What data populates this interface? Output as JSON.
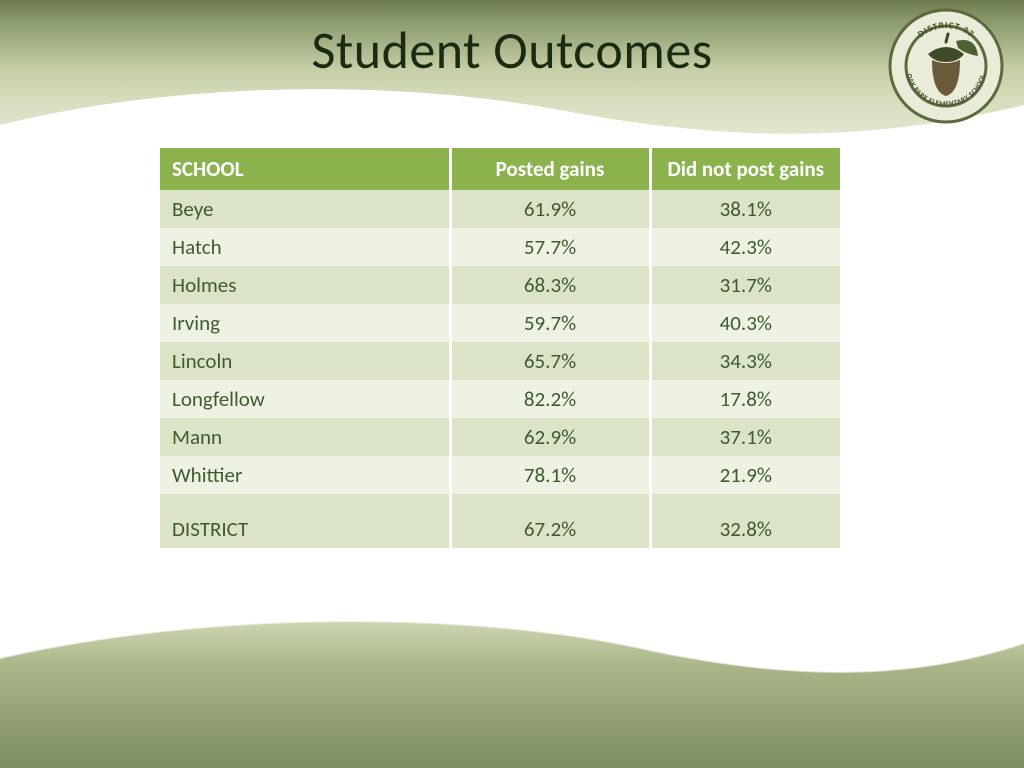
{
  "title": "Student Outcomes",
  "logo": {
    "outer_text_top": "DISTRICT 97",
    "outer_text_bottom": "OAK PARK ELEMENTARY SCHOOL",
    "ring_color": "#5b6b3e",
    "acorn_body": "#6b5a3a",
    "acorn_cap": "#3f4a2a",
    "leaf_color": "#4f6133",
    "bg": "#e8ecd8"
  },
  "table": {
    "header_bg": "#8cb24e",
    "header_fg": "#ffffff",
    "row_odd_bg": "#dce4c8",
    "row_even_bg": "#eef2e2",
    "text_color": "#3e5a2f",
    "columns": [
      "SCHOOL",
      "Posted gains",
      "Did not post gains"
    ],
    "rows": [
      {
        "school": "Beye",
        "gains": "61.9%",
        "not": "38.1%"
      },
      {
        "school": "Hatch",
        "gains": "57.7%",
        "not": "42.3%"
      },
      {
        "school": "Holmes",
        "gains": "68.3%",
        "not": "31.7%"
      },
      {
        "school": "Irving",
        "gains": "59.7%",
        "not": "40.3%"
      },
      {
        "school": "Lincoln",
        "gains": "65.7%",
        "not": "34.3%"
      },
      {
        "school": "Longfellow",
        "gains": "82.2%",
        "not": "17.8%"
      },
      {
        "school": "Mann",
        "gains": "62.9%",
        "not": "37.1%"
      },
      {
        "school": "Whittier",
        "gains": "78.1%",
        "not": "21.9%"
      }
    ],
    "summary": {
      "school": "DISTRICT",
      "gains": "67.2%",
      "not": "32.8%"
    }
  },
  "bands": {
    "header_gradient_top": "#6d7b4f",
    "header_gradient_bottom": "#e3e8d0",
    "footer_top": "#96a67a",
    "footer_mid": "#b8c49a",
    "footer_bottom": "#7a8a5c"
  }
}
